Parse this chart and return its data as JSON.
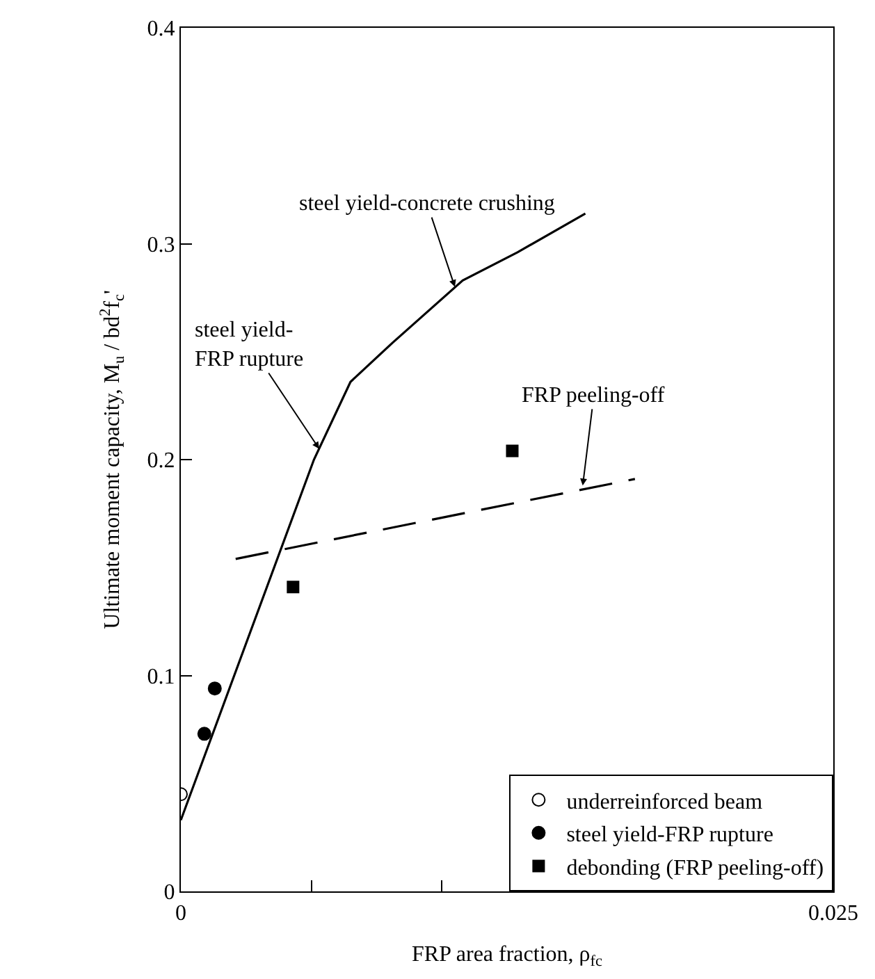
{
  "chart_data": {
    "type": "line",
    "xlabel": "FRP area fraction, ρ$_{fc}$",
    "ylabel": "Ultimate moment capacity, M$_{u}$ / bd$^{2}$f$_{c}$'",
    "xlim": [
      0,
      0.025
    ],
    "ylim": [
      0,
      0.4
    ],
    "xticks": [
      0,
      {
        "value": 0.005,
        "label": null
      },
      {
        "value": 0.01,
        "label": null
      },
      {
        "value": 0.015,
        "label": null
      },
      {
        "value": 0.02,
        "label": null
      },
      {
        "value": 0.025,
        "label": "0.025"
      }
    ],
    "yticks": [
      0,
      0.1,
      0.2,
      0.3,
      0.4
    ],
    "legend": "bottom right",
    "series": [
      {
        "line_style": "solid",
        "marker": "none",
        "color": "#000000",
        "x": [
          0,
          0.0051,
          0.0065,
          0.0081,
          0.0108,
          0.0129,
          0.0155
        ],
        "values": [
          0.033,
          0.2,
          0.236,
          0.254,
          0.283,
          0.296,
          0.314
        ]
      },
      {
        "line_style": "dashed",
        "marker": "none",
        "color": "#000000",
        "x": [
          0.0021,
          0.0174
        ],
        "values": [
          0.154,
          0.191
        ]
      },
      {
        "type": "scatter",
        "name": "underreinforced beam",
        "marker": "circle",
        "color": "#ffffff",
        "x": [
          0
        ],
        "values": [
          0.045
        ]
      },
      {
        "type": "scatter",
        "name": "steel yield-FRP rupture",
        "marker": "circle",
        "color": "#000000",
        "x": [
          0.0009,
          0.0013
        ],
        "values": [
          0.073,
          0.094
        ]
      },
      {
        "type": "scatter",
        "name": "debonding (FRP peeling-off)",
        "marker": "square",
        "color": "#000000",
        "x": [
          0.0043,
          0.0127
        ],
        "values": [
          0.141,
          0.204
        ]
      }
    ],
    "annotations": [
      {
        "text": "steel yield-concrete crushing",
        "x": 0.0105,
        "y": 0.28
      },
      {
        "text": "steel yield-\nFRP rupture",
        "x": 0.0053,
        "y": 0.205
      },
      {
        "text": "FRP peeling-off",
        "x": 0.0154,
        "y": 0.188
      }
    ]
  }
}
